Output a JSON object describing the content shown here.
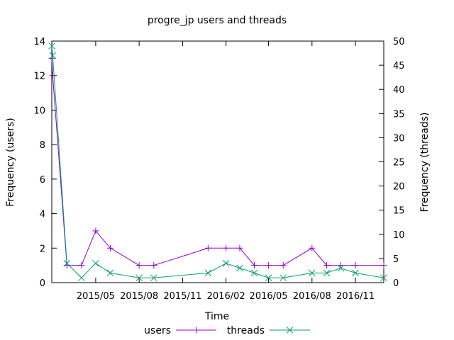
{
  "chart_data": {
    "type": "line",
    "title": "progre_jp users and threads",
    "xlabel": "Time",
    "ylabel": "Frequency (users)",
    "y2label": "Frequency (threads)",
    "ylim": [
      0,
      14
    ],
    "y2lim": [
      0,
      50
    ],
    "yticks": [
      "0",
      "2",
      "4",
      "6",
      "8",
      "10",
      "12",
      "14"
    ],
    "y2ticks": [
      "0",
      "5",
      "10",
      "15",
      "20",
      "25",
      "30",
      "35",
      "40",
      "45",
      "50"
    ],
    "xlim": [
      "2015-01-28",
      "2016-12-31"
    ],
    "xticks": [
      {
        "date": "2015-05-01",
        "label": "2015/05"
      },
      {
        "date": "2015-08-01",
        "label": "2015/08"
      },
      {
        "date": "2015-11-01",
        "label": "2015/11"
      },
      {
        "date": "2016-02-01",
        "label": "2016/02"
      },
      {
        "date": "2016-05-01",
        "label": "2016/05"
      },
      {
        "date": "2016-08-01",
        "label": "2016/08"
      },
      {
        "date": "2016-11-01",
        "label": "2016/11"
      }
    ],
    "grid": false,
    "legend_position": "bottom-center",
    "series": [
      {
        "name": "users",
        "axis": "left",
        "color": "#9400d3",
        "marker": "plus",
        "x": [
          "2015-01-28",
          "2015-01-30",
          "2015-03-01",
          "2015-04-01",
          "2015-05-01",
          "2015-06-01",
          "2015-08-01",
          "2015-09-01",
          "2015-12-25",
          "2016-02-01",
          "2016-03-01",
          "2016-04-01",
          "2016-05-01",
          "2016-06-01",
          "2016-08-01",
          "2016-09-01",
          "2016-10-01",
          "2016-11-01",
          "2016-12-31"
        ],
        "values": [
          13,
          12,
          1,
          1,
          3,
          2,
          1,
          1,
          2,
          2,
          2,
          1,
          1,
          1,
          2,
          1,
          1,
          1,
          1
        ]
      },
      {
        "name": "threads",
        "axis": "right",
        "color": "#009e73",
        "marker": "cross",
        "x": [
          "2015-01-28",
          "2015-01-30",
          "2015-03-01",
          "2015-04-01",
          "2015-05-01",
          "2015-06-01",
          "2015-08-01",
          "2015-09-01",
          "2015-12-25",
          "2016-02-01",
          "2016-03-01",
          "2016-04-01",
          "2016-05-01",
          "2016-06-01",
          "2016-08-01",
          "2016-09-01",
          "2016-10-01",
          "2016-11-01",
          "2016-12-31"
        ],
        "values": [
          49,
          47,
          4,
          1,
          4,
          2,
          1,
          1,
          2,
          4,
          3,
          2,
          1,
          1,
          2,
          2,
          3,
          2,
          1
        ]
      }
    ]
  }
}
